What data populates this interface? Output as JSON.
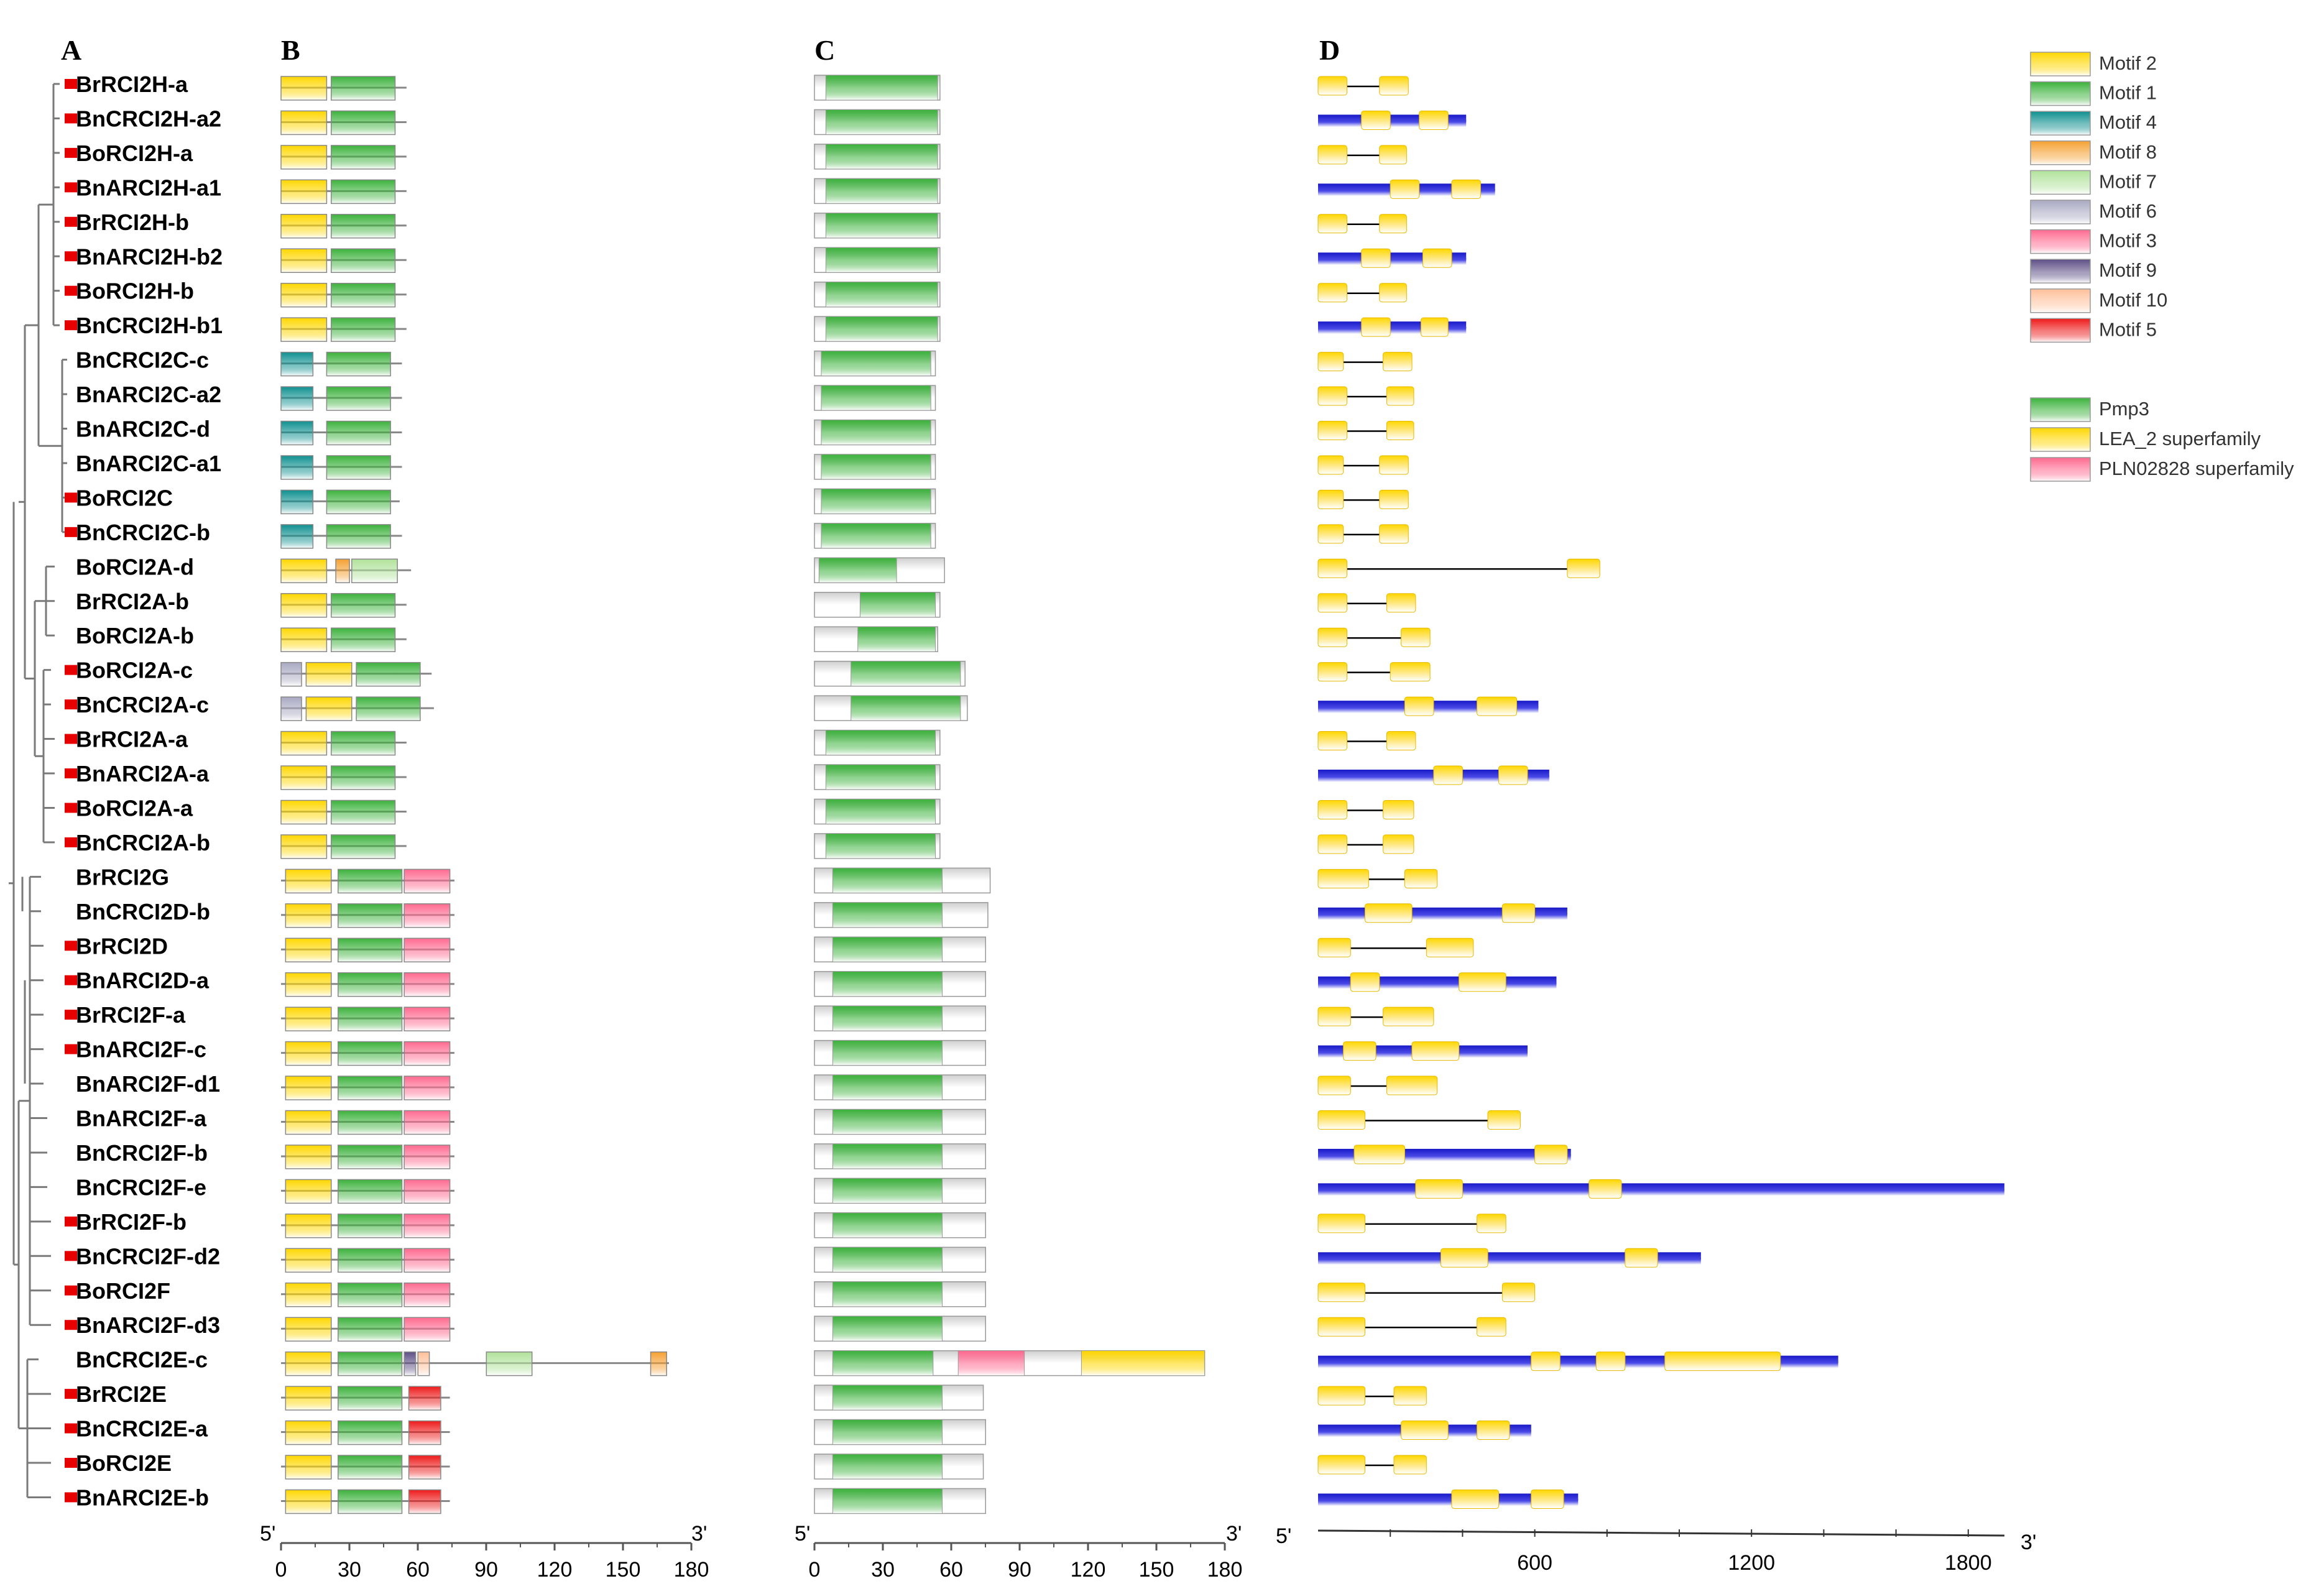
{
  "panels": {
    "a": "A",
    "b": "B",
    "c": "C",
    "d": "D"
  },
  "genes": [
    {
      "name": "BrRCI2H-a",
      "marker": true
    },
    {
      "name": "BnCRCI2H-a2",
      "marker": true
    },
    {
      "name": "BoRCI2H-a",
      "marker": true
    },
    {
      "name": "BnARCI2H-a1",
      "marker": true
    },
    {
      "name": "BrRCI2H-b",
      "marker": true
    },
    {
      "name": "BnARCI2H-b2",
      "marker": true
    },
    {
      "name": "BoRCI2H-b",
      "marker": true
    },
    {
      "name": "BnCRCI2H-b1",
      "marker": true
    },
    {
      "name": "BnCRCI2C-c",
      "marker": false
    },
    {
      "name": "BnARCI2C-a2",
      "marker": false
    },
    {
      "name": "BnARCI2C-d",
      "marker": false
    },
    {
      "name": "BnARCI2C-a1",
      "marker": false
    },
    {
      "name": "BoRCI2C",
      "marker": true
    },
    {
      "name": "BnCRCI2C-b",
      "marker": true
    },
    {
      "name": "BoRCI2A-d",
      "marker": false
    },
    {
      "name": "BrRCI2A-b",
      "marker": false
    },
    {
      "name": "BoRCI2A-b",
      "marker": false
    },
    {
      "name": "BoRCI2A-c",
      "marker": true
    },
    {
      "name": "BnCRCI2A-c",
      "marker": true
    },
    {
      "name": "BrRCI2A-a",
      "marker": true
    },
    {
      "name": "BnARCI2A-a",
      "marker": true
    },
    {
      "name": "BoRCI2A-a",
      "marker": true
    },
    {
      "name": "BnCRCI2A-b",
      "marker": true
    },
    {
      "name": "BrRCI2G",
      "marker": false
    },
    {
      "name": "BnCRCI2D-b",
      "marker": false
    },
    {
      "name": "BrRCI2D",
      "marker": true
    },
    {
      "name": "BnARCI2D-a",
      "marker": true
    },
    {
      "name": "BrRCI2F-a",
      "marker": true
    },
    {
      "name": "BnARCI2F-c",
      "marker": true
    },
    {
      "name": "BnARCI2F-d1",
      "marker": false
    },
    {
      "name": "BnARCI2F-a",
      "marker": false
    },
    {
      "name": "BnCRCI2F-b",
      "marker": false
    },
    {
      "name": "BnCRCI2F-e",
      "marker": false
    },
    {
      "name": "BrRCI2F-b",
      "marker": true
    },
    {
      "name": "BnCRCI2F-d2",
      "marker": true
    },
    {
      "name": "BoRCI2F",
      "marker": true
    },
    {
      "name": "BnARCI2F-d3",
      "marker": true
    },
    {
      "name": "BnCRCI2E-c",
      "marker": false
    },
    {
      "name": "BrRCI2E",
      "marker": true
    },
    {
      "name": "BnCRCI2E-a",
      "marker": true
    },
    {
      "name": "BoRCI2E",
      "marker": true
    },
    {
      "name": "BnARCI2E-b",
      "marker": true
    }
  ],
  "legend": {
    "motifs": [
      {
        "label": "Motif 2",
        "color": "#ffd700"
      },
      {
        "label": "Motif 1",
        "color": "#3cb23c"
      },
      {
        "label": "Motif 4",
        "color": "#0f9090"
      },
      {
        "label": "Motif 8",
        "color": "#f5a030"
      },
      {
        "label": "Motif 7",
        "color": "#b0e29a"
      },
      {
        "label": "Motif 6",
        "color": "#a8a8c2"
      },
      {
        "label": "Motif 3",
        "color": "#ff6a90"
      },
      {
        "label": "Motif 9",
        "color": "#5e4f86"
      },
      {
        "label": "Motif 10",
        "color": "#ffc09a"
      },
      {
        "label": "Motif 5",
        "color": "#ee1a1a"
      }
    ],
    "domains": [
      {
        "label": "Pmp3",
        "color": "#3cb23c"
      },
      {
        "label": "LEA_2 superfamily",
        "color": "#ffd700"
      },
      {
        "label": "PLN02828 superfamily",
        "color": "#ff6a90"
      }
    ]
  },
  "axes": {
    "b": {
      "left_end": "5'",
      "right_end": "3'",
      "min": 0,
      "max": 180,
      "ticks": [
        "0",
        "30",
        "60",
        "90",
        "120",
        "150",
        "180"
      ]
    },
    "c": {
      "left_end": "5'",
      "right_end": "3'",
      "min": 0,
      "max": 180,
      "ticks": [
        "0",
        "30",
        "60",
        "90",
        "120",
        "150",
        "180"
      ]
    },
    "d": {
      "left_end": "5'",
      "right_end": "3'",
      "ticks": [
        "600",
        "1200",
        "1800"
      ]
    }
  },
  "colors": {
    "marker": "#e60000",
    "utr": "#2222cc",
    "cds": "#ffd700",
    "tree": "#7a7a7a",
    "protein_body": "#d9d9d9"
  }
}
